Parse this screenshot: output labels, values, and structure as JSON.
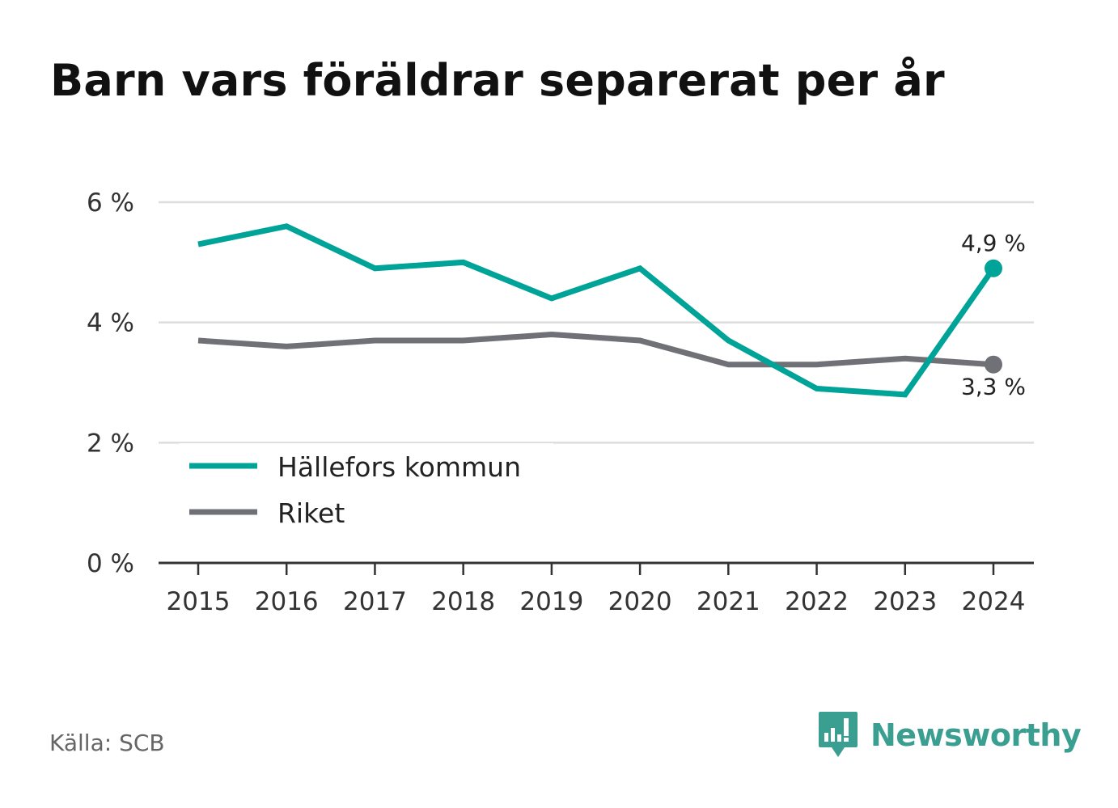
{
  "title": "Barn vars föräldrar separerat per år",
  "source": "Källa: SCB",
  "brand": {
    "name": "Newsworthy"
  },
  "colors": {
    "hallefors": "#00a398",
    "riket": "#707077",
    "grid": "#dddddd",
    "axis": "#333333",
    "brand": "#3a9e90"
  },
  "chart_data": {
    "type": "line",
    "title": "Barn vars föräldrar separerat per år",
    "x": [
      "2015",
      "2016",
      "2017",
      "2018",
      "2019",
      "2020",
      "2021",
      "2022",
      "2023",
      "2024"
    ],
    "y_ticks": [
      {
        "value": 0,
        "label": "0 %"
      },
      {
        "value": 2,
        "label": "2 %"
      },
      {
        "value": 4,
        "label": "4 %"
      },
      {
        "value": 6,
        "label": "6 %"
      }
    ],
    "ylim": [
      0,
      6
    ],
    "grid": true,
    "legend_position": "bottom-left",
    "series": [
      {
        "name": "Hällefors kommun",
        "color": "#00a398",
        "values": [
          5.3,
          5.6,
          4.9,
          5.0,
          4.4,
          4.9,
          3.7,
          2.9,
          2.8,
          4.9
        ],
        "end_label": "4,9 %"
      },
      {
        "name": "Riket",
        "color": "#707077",
        "values": [
          3.7,
          3.6,
          3.7,
          3.7,
          3.8,
          3.7,
          3.3,
          3.3,
          3.4,
          3.3
        ],
        "end_label": "3,3 %"
      }
    ]
  }
}
